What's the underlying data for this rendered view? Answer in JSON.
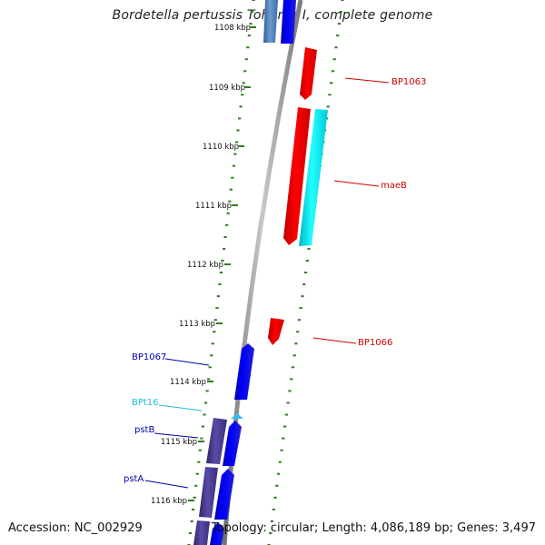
{
  "header": {
    "title": "Bordetella pertussis Tohama I, complete genome"
  },
  "footer": {
    "accession": "Accession: NC_002929",
    "topology": "Topology: circular; Length: 4,086,189 bp; Genes: 3,497"
  },
  "map": {
    "tick_labels": [
      "1108 kbp",
      "1109 kbp",
      "1110 kbp",
      "1111 kbp",
      "1112 kbp",
      "1113 kbp",
      "1114 kbp",
      "1115 kbp",
      "1116 kbp"
    ],
    "colors": {
      "backbone": "#9a9a9a",
      "tick": "#2d7d1e",
      "forward_gene": "#0000ee",
      "reverse_gene": "#ee0000",
      "cyan_gene": "#00e5ee",
      "steelblue_gene": "#4a7fb5",
      "purple_gene": "#4b3d8f",
      "label_red": "#cc0000",
      "label_blue": "#0000aa",
      "label_cyan": "#22bbdd"
    },
    "gene_labels": [
      {
        "name": "BP1063",
        "color_key": "label_red"
      },
      {
        "name": "maeB",
        "color_key": "label_red"
      },
      {
        "name": "BP1066",
        "color_key": "label_red"
      },
      {
        "name": "BP1067",
        "color_key": "label_blue"
      },
      {
        "name": "BPt16",
        "color_key": "label_cyan"
      },
      {
        "name": "pstB",
        "color_key": "label_blue"
      },
      {
        "name": "pstA",
        "color_key": "label_blue"
      }
    ]
  }
}
